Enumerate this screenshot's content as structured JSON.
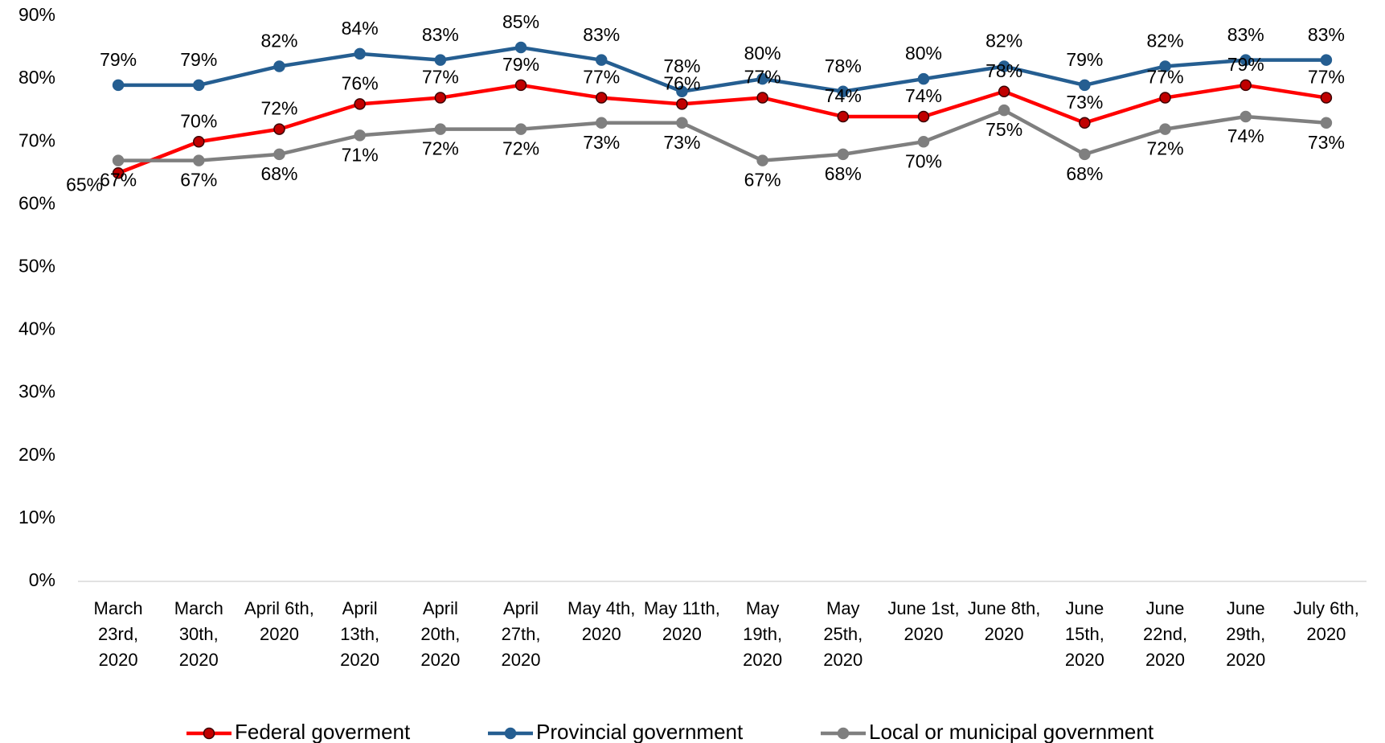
{
  "chart_data": {
    "type": "line",
    "categories": [
      "March 23rd, 2020",
      "March 30th, 2020",
      "April 6th, 2020",
      "April 13th, 2020",
      "April 20th, 2020",
      "April 27th, 2020",
      "May 4th, 2020",
      "May 11th, 2020",
      "May 19th, 2020",
      "May 25th, 2020",
      "June 1st, 2020",
      "June 8th, 2020",
      "June 15th, 2020",
      "June 22nd, 2020",
      "June 29th, 2020",
      "July 6th, 2020"
    ],
    "series": [
      {
        "name": "Federal goverment",
        "color": "#ff0000",
        "marker_color": "#c00000",
        "values": [
          65,
          70,
          72,
          76,
          77,
          79,
          77,
          76,
          77,
          74,
          74,
          78,
          73,
          77,
          79,
          77
        ],
        "value_labels": [
          "65%",
          "70%",
          "72%",
          "76%",
          "77%",
          "79%",
          "77%",
          "76%",
          "77%",
          "74%",
          "74%",
          "78%",
          "73%",
          "77%",
          "79%",
          "77%"
        ]
      },
      {
        "name": "Provincial government",
        "color": "#255e91",
        "marker_color": "#255e91",
        "values": [
          79,
          79,
          82,
          84,
          83,
          85,
          83,
          78,
          80,
          78,
          80,
          82,
          79,
          82,
          83,
          83
        ],
        "value_labels": [
          "79%",
          "79%",
          "82%",
          "84%",
          "83%",
          "85%",
          "83%",
          "78%",
          "80%",
          "78%",
          "80%",
          "82%",
          "79%",
          "82%",
          "83%",
          "83%"
        ]
      },
      {
        "name": "Local or municipal government",
        "color": "#7f7f7f",
        "marker_color": "#7f7f7f",
        "values": [
          67,
          67,
          68,
          71,
          72,
          72,
          73,
          73,
          67,
          68,
          70,
          75,
          68,
          72,
          74,
          73
        ],
        "value_labels": [
          "67%",
          "67%",
          "68%",
          "71%",
          "72%",
          "72%",
          "73%",
          "73%",
          "67%",
          "68%",
          "70%",
          "75%",
          "68%",
          "72%",
          "74%",
          "73%"
        ]
      }
    ],
    "ylim": [
      0,
      90
    ],
    "yticks": [
      {
        "value": 0,
        "label": "0%"
      },
      {
        "value": 10,
        "label": "10%"
      },
      {
        "value": 20,
        "label": "20%"
      },
      {
        "value": 30,
        "label": "30%"
      },
      {
        "value": 40,
        "label": "40%"
      },
      {
        "value": 50,
        "label": "50%"
      },
      {
        "value": 60,
        "label": "60%"
      },
      {
        "value": 70,
        "label": "70%"
      },
      {
        "value": 80,
        "label": "80%"
      },
      {
        "value": 90,
        "label": "90%"
      }
    ],
    "grid": false,
    "legend": "bottom"
  }
}
